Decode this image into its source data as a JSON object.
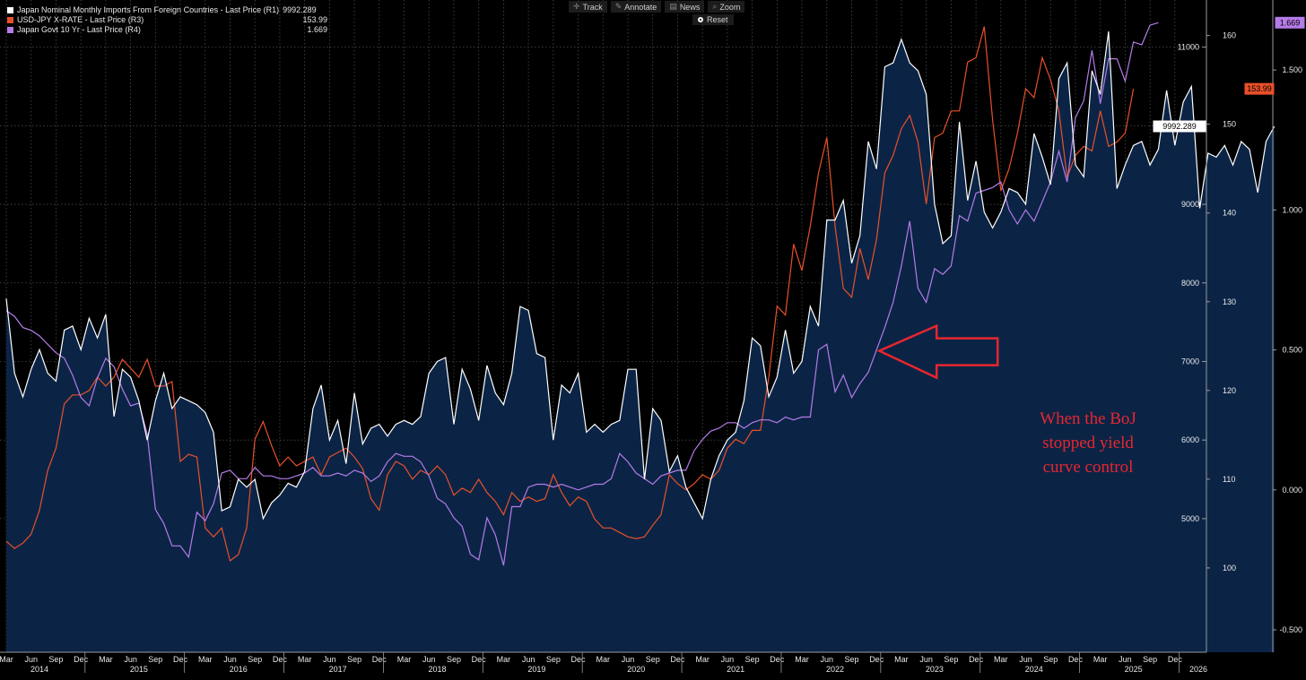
{
  "legend": [
    {
      "label": "Japan Nominal Monthly Imports From Foreign Countries - Last Price (R1)",
      "value": "9992.289",
      "color": "#ffffff"
    },
    {
      "label": "USD-JPY X-RATE - Last Price (R3)",
      "value": "153.99",
      "color": "#e8502a"
    },
    {
      "label": "Japan Govt 10 Yr - Last Price (R4)",
      "value": "1.669",
      "color": "#b57be8"
    }
  ],
  "toolbar": [
    {
      "label": "Track",
      "icon": "crosshair-icon"
    },
    {
      "label": "Annotate",
      "icon": "pencil-icon"
    },
    {
      "label": "News",
      "icon": "news-icon"
    },
    {
      "label": "Zoom",
      "icon": "magnifier-icon"
    }
  ],
  "reset_label": "Reset",
  "annotation": {
    "lines": [
      "When the BoJ",
      "stopped yield",
      "curve control"
    ],
    "color": "#e8262e",
    "arrow_at": "2022-12"
  },
  "chart_data": {
    "type": "line",
    "title": "",
    "start_month": "2014-03",
    "end_month": "2026-02",
    "x_month_labels": [
      "Mar",
      "Jun",
      "Sep",
      "Dec"
    ],
    "x_year_labels": [
      "2014",
      "2015",
      "2016",
      "2017",
      "2018",
      "2019",
      "2020",
      "2021",
      "2022",
      "2023",
      "2024",
      "2025",
      "2026"
    ],
    "axes": {
      "R1": {
        "range": [
          3300,
          11600
        ],
        "ticks": [
          5000,
          6000,
          7000,
          8000,
          9000,
          10000,
          11000
        ]
      },
      "R3": {
        "range": [
          90.5,
          164
        ],
        "ticks": [
          100,
          110,
          120,
          130,
          140,
          150,
          160
        ]
      },
      "R4": {
        "range": [
          -0.58,
          1.75
        ],
        "ticks": [
          -0.5,
          0.0,
          0.5,
          1.0,
          1.5
        ],
        "tick_labels": [
          "-0.500",
          "0.000",
          "0.500",
          "1.000",
          "1.500"
        ]
      }
    },
    "series": [
      {
        "name": "Japan Nominal Monthly Imports From Foreign Countries",
        "axis": "R1",
        "color": "#ffffff",
        "fill": "#0b2446",
        "last_label": "9992.289",
        "values": [
          7800,
          6850,
          6550,
          6900,
          7150,
          6850,
          6750,
          7400,
          7450,
          7150,
          7550,
          7300,
          7600,
          6300,
          6900,
          6800,
          6500,
          6000,
          6500,
          6850,
          6400,
          6550,
          6500,
          6450,
          6350,
          6100,
          5100,
          5150,
          5500,
          5400,
          5500,
          5000,
          5200,
          5300,
          5450,
          5400,
          5600,
          6400,
          6700,
          6000,
          6250,
          5700,
          6600,
          5950,
          6150,
          6200,
          6050,
          6200,
          6250,
          6200,
          6300,
          6850,
          7000,
          7050,
          6200,
          6900,
          6650,
          6250,
          6950,
          6600,
          6450,
          6850,
          7700,
          7650,
          7100,
          7050,
          6000,
          6700,
          6600,
          6850,
          6100,
          6200,
          6100,
          6200,
          6250,
          6900,
          6900,
          5500,
          6400,
          6250,
          5600,
          5800,
          5400,
          5200,
          5000,
          5500,
          5800,
          6000,
          6100,
          6500,
          7300,
          7200,
          6550,
          6800,
          7400,
          6850,
          7000,
          7700,
          7450,
          8800,
          8800,
          9050,
          8250,
          8600,
          9800,
          9450,
          10750,
          10800,
          11100,
          10800,
          10700,
          10400,
          9000,
          8500,
          8600,
          10050,
          9050,
          9550,
          8900,
          8700,
          8900,
          9200,
          9150,
          9000,
          9900,
          9600,
          9250,
          10600,
          10800,
          9500,
          9350,
          10700,
          10400,
          11200,
          9200,
          9500,
          9750,
          9800,
          9500,
          9700,
          10450,
          9750,
          10300,
          10500,
          8950,
          9650,
          9600,
          9750,
          9500,
          9800,
          9700,
          9150,
          9800,
          9992.289
        ]
      },
      {
        "name": "USD-JPY X-RATE",
        "axis": "R3",
        "color": "#e8502a",
        "last_label": "153.99",
        "values": [
          103,
          102.2,
          102.8,
          103.8,
          106.5,
          111,
          113.5,
          118.5,
          119.5,
          119.5,
          120,
          121.5,
          120.5,
          121.5,
          123.5,
          122.5,
          121.5,
          123.5,
          120.5,
          120.5,
          121,
          112,
          112.8,
          112.5,
          104.5,
          103.5,
          104.5,
          100.8,
          101.5,
          104.5,
          114.5,
          116.5,
          113.8,
          111.5,
          112.5,
          111.5,
          112,
          112.5,
          110.5,
          112.5,
          113,
          113.5,
          112.5,
          111.2,
          107.8,
          106.5,
          110.5,
          112,
          111.5,
          110,
          111,
          110.5,
          111.5,
          110.5,
          108.2,
          109,
          108.5,
          110,
          108.5,
          107.5,
          106,
          108.5,
          107.5,
          108,
          107.5,
          107.8,
          110.5,
          108.5,
          107,
          108,
          107.5,
          105.5,
          104.5,
          104.5,
          104,
          103.5,
          103.3,
          103.5,
          104.8,
          106,
          110.5,
          109.5,
          108.8,
          109.5,
          110.5,
          110,
          111,
          113.5,
          114.5,
          114,
          115.5,
          115.5,
          121.5,
          129.5,
          128.5,
          136.5,
          133.5,
          138.5,
          144.5,
          148.5,
          138.5,
          131.5,
          130.5,
          136,
          132.5,
          137,
          144.5,
          146.5,
          149.5,
          151,
          148,
          141,
          148.5,
          149,
          151.5,
          151.5,
          157,
          157.5,
          161,
          150.5,
          142.5,
          145,
          149,
          154,
          153,
          157.5,
          155,
          151.5,
          144,
          146.5,
          147.5,
          147,
          151.5,
          147.5,
          148,
          149,
          153.99
        ]
      },
      {
        "name": "Japan Govt 10 Yr",
        "axis": "R4",
        "color": "#b57be8",
        "last_label": "1.669",
        "values": [
          0.64,
          0.62,
          0.58,
          0.57,
          0.55,
          0.52,
          0.49,
          0.47,
          0.41,
          0.33,
          0.3,
          0.4,
          0.47,
          0.44,
          0.36,
          0.3,
          0.31,
          0.2,
          -0.07,
          -0.12,
          -0.2,
          -0.2,
          -0.24,
          -0.08,
          -0.11,
          -0.05,
          0.06,
          0.07,
          0.04,
          0.04,
          0.08,
          0.05,
          0.05,
          0.04,
          0.04,
          0.05,
          0.06,
          0.08,
          0.05,
          0.05,
          0.06,
          0.05,
          0.07,
          0.06,
          0.03,
          0.05,
          0.1,
          0.13,
          0.12,
          0.12,
          0.1,
          0.05,
          -0.03,
          -0.05,
          -0.1,
          -0.13,
          -0.23,
          -0.25,
          -0.1,
          -0.16,
          -0.27,
          -0.06,
          -0.06,
          0.01,
          0.02,
          0.02,
          0.01,
          0.02,
          0.01,
          0.0,
          0.01,
          0.02,
          0.02,
          0.04,
          0.13,
          0.1,
          0.06,
          0.04,
          0.02,
          0.05,
          0.06,
          0.07,
          0.07,
          0.14,
          0.18,
          0.21,
          0.22,
          0.24,
          0.24,
          0.22,
          0.24,
          0.25,
          0.25,
          0.24,
          0.26,
          0.25,
          0.26,
          0.26,
          0.5,
          0.52,
          0.35,
          0.41,
          0.33,
          0.38,
          0.42,
          0.5,
          0.58,
          0.67,
          0.8,
          0.96,
          0.72,
          0.67,
          0.79,
          0.77,
          0.8,
          0.98,
          0.96,
          1.06,
          1.07,
          1.08,
          1.1,
          1.0,
          0.95,
          1.0,
          0.96,
          1.03,
          1.1,
          1.21,
          1.1,
          1.33,
          1.39,
          1.57,
          1.38,
          1.54,
          1.54,
          1.46,
          1.6,
          1.59,
          1.66,
          1.669
        ]
      }
    ]
  }
}
